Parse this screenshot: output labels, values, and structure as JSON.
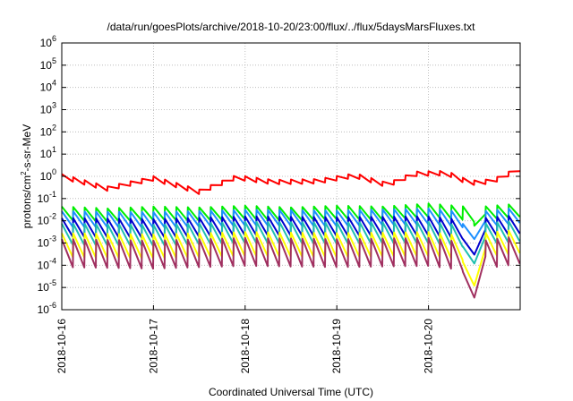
{
  "chart_data": {
    "type": "line",
    "title": "/data/run/goesPlots/archive/2018-10-20/23:00/flux/../flux/5daysMarsFluxes.txt",
    "xlabel": "Coordinated Universal Time (UTC)",
    "ylabel_parts": {
      "pre": "protons/cm",
      "sup": "2",
      "post": "-s-sr-MeV"
    },
    "y_scale": "log",
    "ylim": [
      1e-06,
      1000000.0
    ],
    "xlim": [
      0,
      5
    ],
    "grid": true,
    "legend": "none",
    "y_ticks": [
      {
        "base": "10",
        "exp": "-6",
        "v": 1e-06
      },
      {
        "base": "10",
        "exp": "-5",
        "v": 1e-05
      },
      {
        "base": "10",
        "exp": "-4",
        "v": 0.0001
      },
      {
        "base": "10",
        "exp": "-3",
        "v": 0.001
      },
      {
        "base": "10",
        "exp": "-2",
        "v": 0.01
      },
      {
        "base": "10",
        "exp": "-1",
        "v": 0.1
      },
      {
        "base": "10",
        "exp": "0",
        "v": 1
      },
      {
        "base": "10",
        "exp": "1",
        "v": 10
      },
      {
        "base": "10",
        "exp": "2",
        "v": 100
      },
      {
        "base": "10",
        "exp": "3",
        "v": 1000
      },
      {
        "base": "10",
        "exp": "4",
        "v": 10000
      },
      {
        "base": "10",
        "exp": "5",
        "v": 100000
      },
      {
        "base": "10",
        "exp": "6",
        "v": 1000000
      }
    ],
    "x_ticks": [
      {
        "label": "2018-10-16",
        "v": 0
      },
      {
        "label": "2018-10-17",
        "v": 1
      },
      {
        "label": "2018-10-18",
        "v": 2
      },
      {
        "label": "2018-10-19",
        "v": 3
      },
      {
        "label": "2018-10-20",
        "v": 4
      }
    ],
    "period_days": 0.125,
    "series": [
      {
        "color": "#ff0000",
        "base": [
          [
            0,
            1.0
          ],
          [
            0.5,
            0.28
          ],
          [
            1.0,
            0.8
          ],
          [
            1.5,
            0.2
          ],
          [
            1.9,
            0.9
          ],
          [
            2.3,
            0.55
          ],
          [
            2.8,
            0.6
          ],
          [
            3.2,
            1.1
          ],
          [
            3.55,
            0.4
          ],
          [
            3.85,
            1.3
          ],
          [
            4.2,
            1.4
          ],
          [
            4.45,
            0.5
          ],
          [
            4.7,
            0.6
          ],
          [
            5.0,
            2.2
          ]
        ],
        "sawtooth": 1.6
      },
      {
        "color": "#00ee00",
        "base": [
          [
            0,
            0.022
          ],
          [
            0.5,
            0.018
          ],
          [
            1.0,
            0.022
          ],
          [
            1.5,
            0.02
          ],
          [
            2.0,
            0.024
          ],
          [
            2.5,
            0.02
          ],
          [
            3.0,
            0.024
          ],
          [
            3.5,
            0.022
          ],
          [
            4.0,
            0.03
          ],
          [
            4.4,
            0.022
          ],
          [
            4.5,
            0.018
          ],
          [
            4.6,
            0.022
          ],
          [
            5.0,
            0.03
          ]
        ],
        "sawtooth": 4,
        "dip": [
          [
            4.42,
            0.02
          ],
          [
            4.5,
            0.006
          ],
          [
            4.58,
            0.02
          ]
        ]
      },
      {
        "color": "#1e90ff",
        "base": [
          [
            0,
            0.012
          ],
          [
            1.0,
            0.011
          ],
          [
            2.0,
            0.014
          ],
          [
            3.0,
            0.013
          ],
          [
            4.0,
            0.016
          ],
          [
            4.4,
            0.011
          ],
          [
            4.6,
            0.012
          ],
          [
            5.0,
            0.018
          ]
        ],
        "sawtooth": 5,
        "dip": [
          [
            4.35,
            0.01
          ],
          [
            4.5,
            0.0015
          ],
          [
            4.6,
            0.01
          ]
        ]
      },
      {
        "color": "#0000cd",
        "base": [
          [
            0,
            0.005
          ],
          [
            1.0,
            0.0045
          ],
          [
            2.0,
            0.006
          ],
          [
            3.0,
            0.0055
          ],
          [
            4.0,
            0.006
          ],
          [
            4.4,
            0.004
          ],
          [
            4.6,
            0.005
          ],
          [
            5.0,
            0.007
          ]
        ],
        "sawtooth": 7,
        "dip": [
          [
            4.3,
            0.004
          ],
          [
            4.5,
            0.0003
          ],
          [
            4.6,
            0.004
          ]
        ]
      },
      {
        "color": "#20c0b0",
        "base": [
          [
            0,
            0.0025
          ],
          [
            1.0,
            0.0022
          ],
          [
            2.0,
            0.003
          ],
          [
            3.0,
            0.0028
          ],
          [
            4.0,
            0.003
          ],
          [
            4.4,
            0.002
          ],
          [
            4.6,
            0.0025
          ],
          [
            5.0,
            0.0035
          ]
        ],
        "sawtooth": 9,
        "dip": [
          [
            4.3,
            0.002
          ],
          [
            4.5,
            0.00012
          ],
          [
            4.6,
            0.002
          ]
        ]
      },
      {
        "color": "#ffff00",
        "base": [
          [
            0,
            0.0008
          ],
          [
            1.0,
            0.0007
          ],
          [
            2.0,
            0.0009
          ],
          [
            3.0,
            0.0008
          ],
          [
            4.0,
            0.0009
          ],
          [
            4.4,
            0.0006
          ],
          [
            4.6,
            0.0008
          ],
          [
            5.0,
            0.0012
          ]
        ],
        "sawtooth": 12,
        "dip": [
          [
            4.3,
            0.0006
          ],
          [
            4.5,
            1.2e-05
          ],
          [
            4.6,
            0.0006
          ]
        ]
      },
      {
        "color": "#a03060",
        "base": [
          [
            0,
            0.00035
          ],
          [
            1.0,
            0.0003
          ],
          [
            2.0,
            0.0004
          ],
          [
            3.0,
            0.00035
          ],
          [
            4.0,
            0.0004
          ],
          [
            4.4,
            0.00025
          ],
          [
            4.6,
            0.0003
          ],
          [
            5.0,
            0.0005
          ]
        ],
        "sawtooth": 18,
        "dip": [
          [
            4.3,
            0.00025
          ],
          [
            4.5,
            3.5e-06
          ],
          [
            4.6,
            0.00025
          ]
        ]
      }
    ]
  }
}
